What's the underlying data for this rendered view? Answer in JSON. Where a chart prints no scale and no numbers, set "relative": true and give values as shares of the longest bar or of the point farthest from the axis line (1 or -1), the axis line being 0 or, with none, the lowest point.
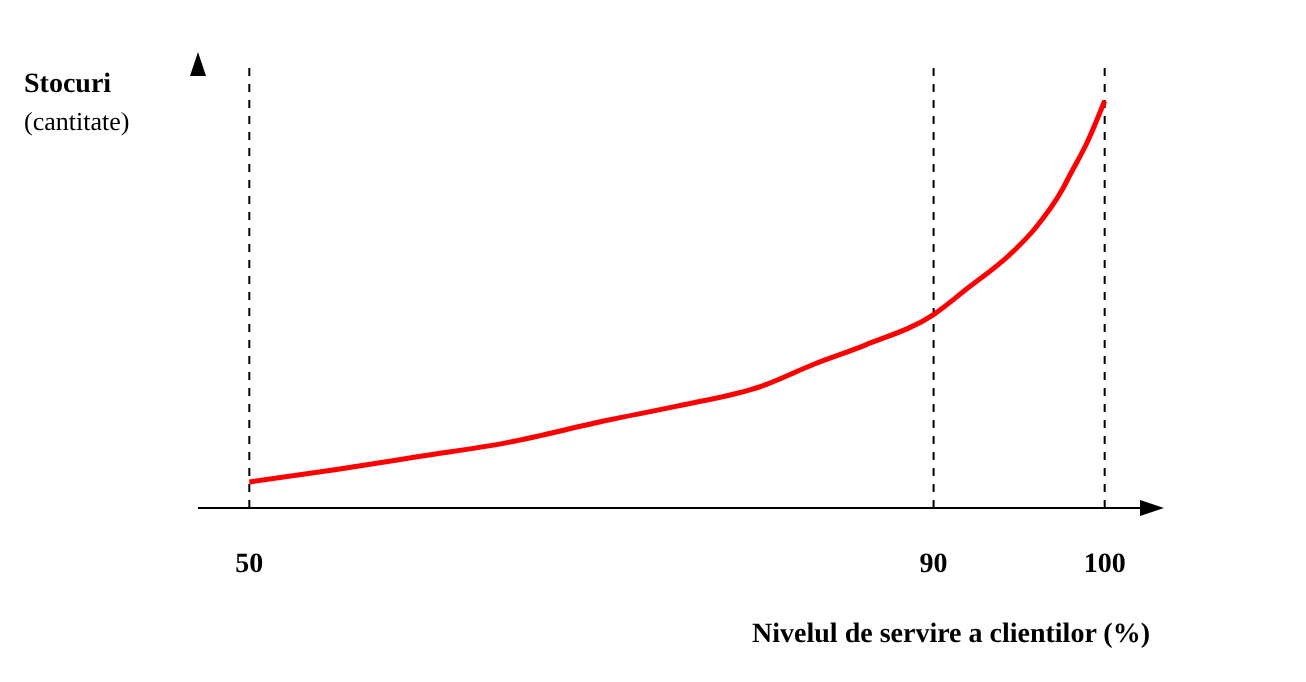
{
  "chart_data": {
    "type": "line",
    "relative": true,
    "xlabel": "Nivelul de servire a clientilor (%)",
    "ylabel": "Stocuri\n(cantitate)",
    "xlim": [
      47,
      103
    ],
    "xticks": [
      50,
      90,
      100
    ],
    "series": [
      {
        "color": "#ff0000",
        "x": [
          50,
          55,
          60,
          65,
          71,
          75,
          80,
          83,
          86,
          90,
          92,
          94.4,
          96,
          97.5,
          98,
          99,
          100
        ],
        "values": [
          0.064,
          0.094,
          0.127,
          0.16,
          0.216,
          0.25,
          0.3,
          0.353,
          0.4,
          0.475,
          0.54,
          0.62,
          0.69,
          0.78,
          0.82,
          0.9,
          1
        ]
      }
    ],
    "ref_lines": [
      {
        "axis": "x",
        "value": 50,
        "line_style": "dashed",
        "color": "#000000"
      },
      {
        "axis": "x",
        "value": 90,
        "line_style": "dashed",
        "color": "#000000"
      },
      {
        "axis": "x",
        "value": 100,
        "line_style": "dashed",
        "color": "#000000"
      }
    ],
    "marker": "none",
    "line_style": "solid"
  }
}
